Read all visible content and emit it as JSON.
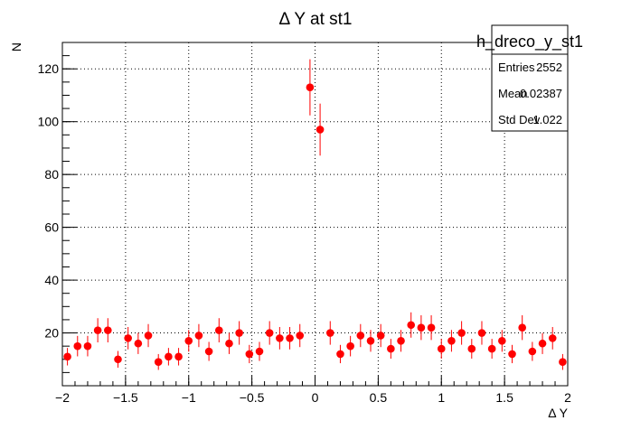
{
  "chart_data": {
    "type": "scatter",
    "title": "Δ Y at st1",
    "xlabel": "Δ Y",
    "ylabel": "N",
    "xlim": [
      -2,
      2
    ],
    "ylim": [
      0,
      130
    ],
    "xticks": [
      -2,
      -1.5,
      -1,
      -0.5,
      0,
      0.5,
      1,
      1.5,
      2
    ],
    "xtick_labels": [
      "−2",
      "−1.5",
      "−1",
      "−0.5",
      "0",
      "0.5",
      "1",
      "1.5",
      "2"
    ],
    "yticks": [
      20,
      40,
      60,
      80,
      100,
      120
    ],
    "ytick_labels": [
      "20",
      "40",
      "60",
      "80",
      "100",
      "120"
    ],
    "grid": true,
    "marker_color": "#ff0000",
    "series": [
      {
        "x": [
          -1.96,
          -1.88,
          -1.8,
          -1.72,
          -1.64,
          -1.56,
          -1.48,
          -1.4,
          -1.32,
          -1.24,
          -1.16,
          -1.08,
          -1.0,
          -0.92,
          -0.84,
          -0.76,
          -0.68,
          -0.6,
          -0.52,
          -0.44,
          -0.36,
          -0.28,
          -0.2,
          -0.12,
          -0.04,
          0.04,
          0.12,
          0.2,
          0.28,
          0.36,
          0.44,
          0.52,
          0.6,
          0.68,
          0.76,
          0.84,
          0.92,
          1.0,
          1.08,
          1.16,
          1.24,
          1.32,
          1.4,
          1.48,
          1.56,
          1.64,
          1.72,
          1.8,
          1.88,
          1.96
        ],
        "y": [
          11,
          15,
          15,
          21,
          21,
          10,
          18,
          16,
          19,
          9,
          11,
          11,
          17,
          19,
          13,
          21,
          16,
          20,
          12,
          13,
          20,
          18,
          18,
          19,
          113,
          97,
          20,
          12,
          15,
          19,
          17,
          19,
          14,
          17,
          23,
          22,
          22,
          14,
          17,
          20,
          14,
          20,
          14,
          17,
          12,
          22,
          13,
          16,
          18,
          9
        ]
      }
    ],
    "stats_box": {
      "name": "h_dreco_y_st1",
      "rows": [
        {
          "label": "Entries",
          "value": "2552"
        },
        {
          "label": "Mean",
          "value": "0.02387"
        },
        {
          "label": "Std Dev",
          "value": "1.022"
        }
      ]
    }
  }
}
